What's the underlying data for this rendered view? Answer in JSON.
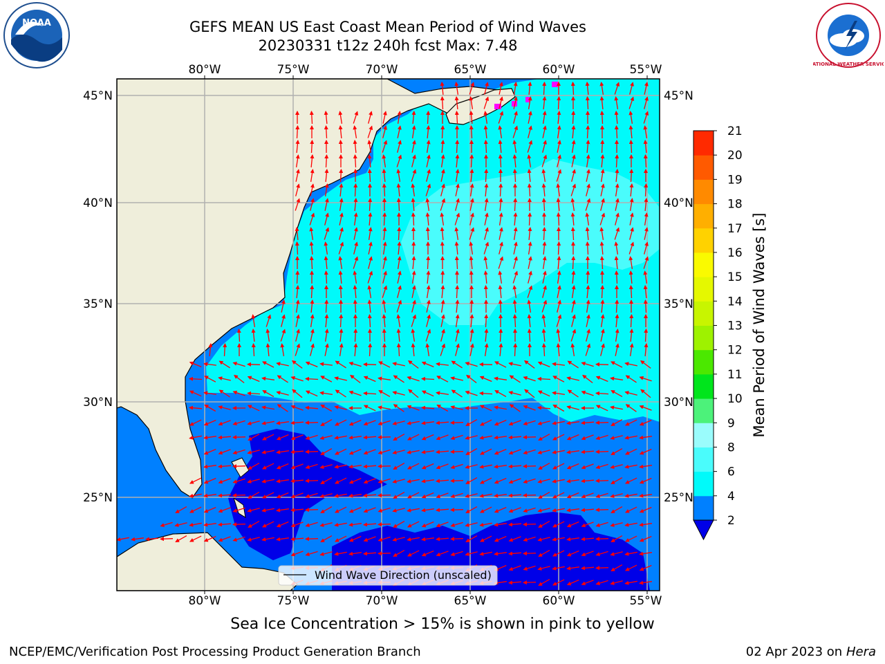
{
  "header": {
    "title_line1": "GEFS MEAN US East Coast Mean Period of Wind Waves",
    "title_line2": "20230331 t12z 240h fcst   Max: 7.48"
  },
  "logos": {
    "left": {
      "icon": "noaa-logo-icon",
      "text": "NOAA"
    },
    "right": {
      "icon": "nws-logo-icon",
      "text": "NATIONAL WEATHER SERVICE"
    }
  },
  "map": {
    "lon_labels": [
      "80°W",
      "75°W",
      "70°W",
      "65°W",
      "60°W",
      "55°W"
    ],
    "lat_labels": [
      "45°N",
      "40°N",
      "35°N",
      "30°N",
      "25°N"
    ],
    "legend": "Wind Wave Direction (unscaled)",
    "colors": {
      "land": "#efeedb",
      "sea_cyan": "#00fafa",
      "sea_light_cyan": "#4afcfc",
      "sea_blue": "#0080ff",
      "sea_dark_blue": "#0000e8",
      "arrow": "#ff0000",
      "sea_ice": "#ff00ff"
    }
  },
  "colorbar": {
    "label": "Mean Period of Wind Waves [s]",
    "ticks": [
      "2",
      "4",
      "6",
      "8",
      "9",
      "10",
      "11",
      "12",
      "13",
      "14",
      "15",
      "16",
      "17",
      "18",
      "19",
      "20",
      "21"
    ],
    "colors": [
      "#0080ff",
      "#00fafa",
      "#4afcfc",
      "#9afcfc",
      "#4cf27a",
      "#00e51c",
      "#4be800",
      "#9ef200",
      "#c8f500",
      "#e5f800",
      "#fafa00",
      "#ffd200",
      "#ffaf00",
      "#ff8a00",
      "#ff5a00",
      "#ff2a00",
      "#ff0000"
    ],
    "extend_color": "#0000e8"
  },
  "subnote": "Sea Ice Concentration > 15% is shown in pink to yellow",
  "footer": {
    "left": "NCEP/EMC/Verification Post Processing Product Generation Branch",
    "date": "02 Apr 2023 on ",
    "host": "Hera"
  }
}
